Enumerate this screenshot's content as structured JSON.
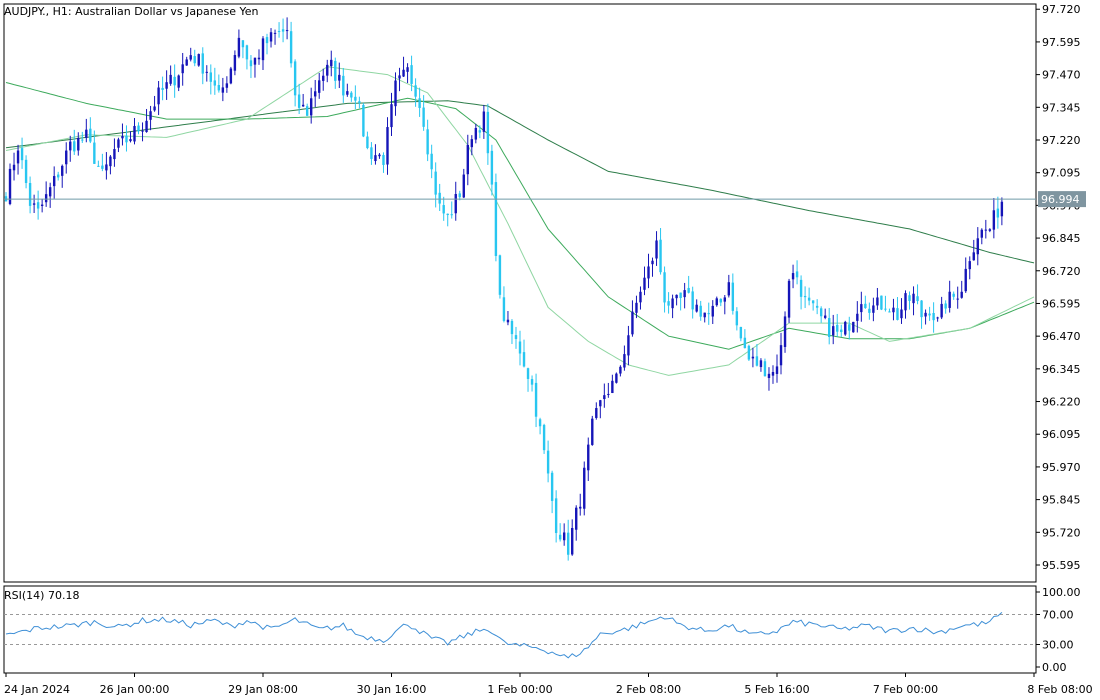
{
  "chart_data": {
    "type": "candlestick",
    "symbol_title": "AUDJPY., H1:  Australian Dollar vs Japanese Yen",
    "current_price": "96.994",
    "price_axis": {
      "min": 95.53,
      "max": 97.74,
      "ticks": [
        "97.720",
        "97.595",
        "97.470",
        "97.345",
        "97.220",
        "97.095",
        "96.970",
        "96.845",
        "96.720",
        "96.595",
        "96.470",
        "96.345",
        "96.220",
        "96.095",
        "95.970",
        "95.845",
        "95.720",
        "95.595"
      ]
    },
    "time_axis": {
      "bars": 256,
      "labels": [
        {
          "bar": 0,
          "text": "24 Jan 2024"
        },
        {
          "bar": 32,
          "text": "26 Jan 00:00"
        },
        {
          "bar": 64,
          "text": "29 Jan 08:00"
        },
        {
          "bar": 96,
          "text": "30 Jan 16:00"
        },
        {
          "bar": 128,
          "text": "1 Feb 00:00"
        },
        {
          "bar": 160,
          "text": "2 Feb 08:00"
        },
        {
          "bar": 192,
          "text": "5 Feb 16:00"
        },
        {
          "bar": 224,
          "text": "7 Feb 00:00"
        },
        {
          "bar": 256,
          "text": "8 Feb 08:00"
        }
      ]
    },
    "close_anchors": [
      [
        0,
        97.02
      ],
      [
        3,
        97.2
      ],
      [
        6,
        96.98
      ],
      [
        8,
        96.94
      ],
      [
        12,
        97.06
      ],
      [
        16,
        97.2
      ],
      [
        20,
        97.23
      ],
      [
        24,
        97.08
      ],
      [
        27,
        97.18
      ],
      [
        30,
        97.22
      ],
      [
        34,
        97.28
      ],
      [
        38,
        97.39
      ],
      [
        42,
        97.46
      ],
      [
        46,
        97.55
      ],
      [
        50,
        97.49
      ],
      [
        53,
        97.38
      ],
      [
        56,
        97.5
      ],
      [
        58,
        97.62
      ],
      [
        61,
        97.5
      ],
      [
        64,
        97.58
      ],
      [
        67,
        97.62
      ],
      [
        70,
        97.64
      ],
      [
        72,
        97.36
      ],
      [
        75,
        97.33
      ],
      [
        78,
        97.46
      ],
      [
        81,
        97.5
      ],
      [
        84,
        97.42
      ],
      [
        87,
        97.4
      ],
      [
        90,
        97.18
      ],
      [
        94,
        97.15
      ],
      [
        97,
        97.42
      ],
      [
        100,
        97.48
      ],
      [
        102,
        97.42
      ],
      [
        104,
        97.3
      ],
      [
        106,
        97.1
      ],
      [
        108,
        96.96
      ],
      [
        110,
        96.92
      ],
      [
        113,
        97.02
      ],
      [
        116,
        97.25
      ],
      [
        119,
        97.3
      ],
      [
        121,
        97.02
      ],
      [
        123,
        96.6
      ],
      [
        125,
        96.5
      ],
      [
        128,
        96.42
      ],
      [
        131,
        96.28
      ],
      [
        134,
        96.02
      ],
      [
        137,
        95.75
      ],
      [
        140,
        95.66
      ],
      [
        143,
        95.85
      ],
      [
        146,
        96.12
      ],
      [
        149,
        96.25
      ],
      [
        152,
        96.3
      ],
      [
        155,
        96.48
      ],
      [
        158,
        96.65
      ],
      [
        160,
        96.72
      ],
      [
        162,
        96.82
      ],
      [
        164,
        96.62
      ],
      [
        166,
        96.58
      ],
      [
        169,
        96.62
      ],
      [
        172,
        96.58
      ],
      [
        175,
        96.55
      ],
      [
        178,
        96.6
      ],
      [
        180,
        96.68
      ],
      [
        182,
        96.5
      ],
      [
        185,
        96.38
      ],
      [
        188,
        96.36
      ],
      [
        191,
        96.33
      ],
      [
        193,
        96.42
      ],
      [
        195,
        96.7
      ],
      [
        197,
        96.7
      ],
      [
        199,
        96.6
      ],
      [
        202,
        96.55
      ],
      [
        205,
        96.5
      ],
      [
        208,
        96.47
      ],
      [
        211,
        96.55
      ],
      [
        213,
        96.62
      ],
      [
        216,
        96.58
      ],
      [
        219,
        96.6
      ],
      [
        222,
        96.55
      ],
      [
        224,
        96.6
      ],
      [
        226,
        96.62
      ],
      [
        228,
        96.55
      ],
      [
        230,
        96.58
      ],
      [
        232,
        96.52
      ],
      [
        234,
        96.6
      ],
      [
        236,
        96.62
      ],
      [
        238,
        96.66
      ],
      [
        240,
        96.78
      ],
      [
        242,
        96.86
      ],
      [
        245,
        96.88
      ],
      [
        248,
        96.99
      ]
    ],
    "moving_averages": [
      {
        "color": "#2e7d4a",
        "anchors": [
          [
            0,
            97.19
          ],
          [
            30,
            97.25
          ],
          [
            60,
            97.31
          ],
          [
            85,
            97.36
          ],
          [
            110,
            97.37
          ],
          [
            120,
            97.35
          ],
          [
            135,
            97.22
          ],
          [
            150,
            97.1
          ],
          [
            175,
            97.03
          ],
          [
            200,
            96.95
          ],
          [
            225,
            96.88
          ],
          [
            245,
            96.79
          ],
          [
            256,
            96.75
          ]
        ]
      },
      {
        "color": "#3daa5c",
        "anchors": [
          [
            0,
            97.44
          ],
          [
            20,
            97.36
          ],
          [
            40,
            97.3
          ],
          [
            60,
            97.3
          ],
          [
            80,
            97.31
          ],
          [
            100,
            97.38
          ],
          [
            112,
            97.34
          ],
          [
            122,
            97.22
          ],
          [
            135,
            96.88
          ],
          [
            150,
            96.62
          ],
          [
            165,
            96.47
          ],
          [
            180,
            96.42
          ],
          [
            195,
            96.5
          ],
          [
            210,
            96.46
          ],
          [
            225,
            96.46
          ],
          [
            240,
            96.5
          ],
          [
            256,
            96.6
          ]
        ]
      },
      {
        "color": "#8fd6a2",
        "anchors": [
          [
            0,
            97.18
          ],
          [
            20,
            97.24
          ],
          [
            40,
            97.23
          ],
          [
            60,
            97.3
          ],
          [
            80,
            97.5
          ],
          [
            95,
            97.47
          ],
          [
            105,
            97.4
          ],
          [
            115,
            97.2
          ],
          [
            125,
            96.9
          ],
          [
            135,
            96.58
          ],
          [
            145,
            96.45
          ],
          [
            155,
            96.36
          ],
          [
            165,
            96.32
          ],
          [
            180,
            96.36
          ],
          [
            195,
            96.52
          ],
          [
            210,
            96.52
          ],
          [
            220,
            96.45
          ],
          [
            240,
            96.5
          ],
          [
            256,
            96.62
          ]
        ]
      }
    ],
    "series_colors": {
      "bull": "#1515b8",
      "bear": "#28c6f0"
    },
    "indicator": {
      "name": "RSI(14) 70.18",
      "levels": [
        "100.00",
        "70.00",
        "30.00",
        "0.00"
      ],
      "overbought": 70,
      "oversold": 30,
      "line_color": "#3e8fd6",
      "anchors": [
        [
          0,
          42
        ],
        [
          8,
          52
        ],
        [
          16,
          55
        ],
        [
          22,
          60
        ],
        [
          28,
          53
        ],
        [
          34,
          62
        ],
        [
          40,
          63
        ],
        [
          46,
          56
        ],
        [
          52,
          62
        ],
        [
          56,
          54
        ],
        [
          60,
          62
        ],
        [
          66,
          50
        ],
        [
          72,
          63
        ],
        [
          78,
          50
        ],
        [
          84,
          55
        ],
        [
          88,
          42
        ],
        [
          94,
          36
        ],
        [
          100,
          58
        ],
        [
          106,
          38
        ],
        [
          110,
          32
        ],
        [
          116,
          45
        ],
        [
          120,
          52
        ],
        [
          124,
          32
        ],
        [
          128,
          28
        ],
        [
          132,
          26
        ],
        [
          136,
          20
        ],
        [
          140,
          12
        ],
        [
          144,
          22
        ],
        [
          148,
          44
        ],
        [
          154,
          50
        ],
        [
          160,
          60
        ],
        [
          164,
          68
        ],
        [
          168,
          56
        ],
        [
          174,
          48
        ],
        [
          180,
          55
        ],
        [
          186,
          42
        ],
        [
          192,
          48
        ],
        [
          196,
          60
        ],
        [
          202,
          56
        ],
        [
          208,
          50
        ],
        [
          214,
          55
        ],
        [
          220,
          48
        ],
        [
          226,
          52
        ],
        [
          232,
          46
        ],
        [
          238,
          55
        ],
        [
          244,
          58
        ],
        [
          248,
          70
        ]
      ]
    }
  }
}
